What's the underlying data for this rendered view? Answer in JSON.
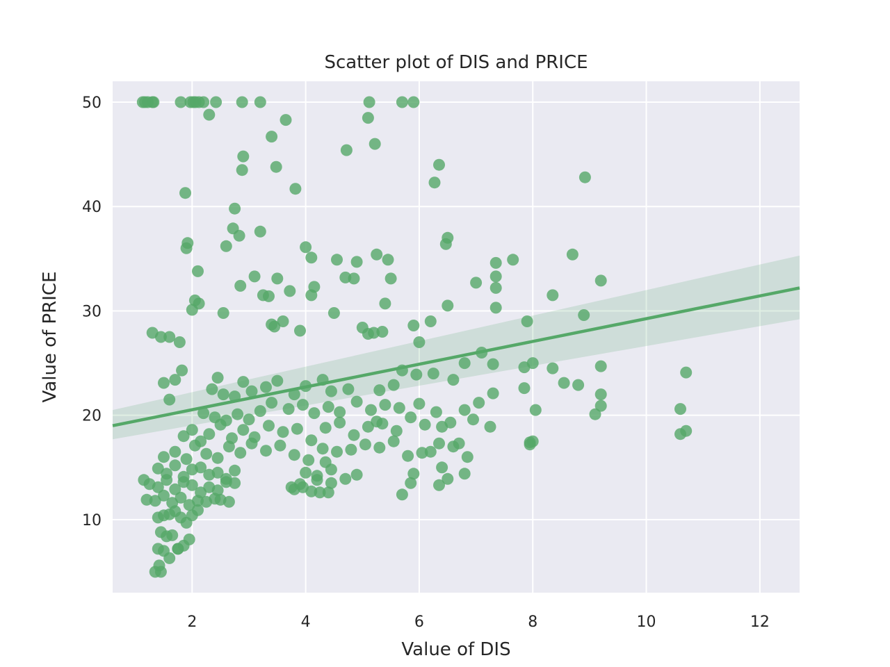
{
  "chart_data": {
    "type": "scatter",
    "title": "Scatter plot of DIS and PRICE",
    "xlabel": "Value of DIS",
    "ylabel": "Value of PRICE",
    "xlim": [
      0.6,
      12.7
    ],
    "ylim": [
      3,
      52
    ],
    "xticks": [
      2,
      4,
      6,
      8,
      10,
      12
    ],
    "yticks": [
      10,
      20,
      30,
      40,
      50
    ],
    "grid": true,
    "colors": {
      "background": "#eaeaf2",
      "grid": "#ffffff",
      "points": "#55a868",
      "ci_band": "#55a868"
    },
    "regression": {
      "x": [
        0.6,
        12.7
      ],
      "y": [
        19.0,
        32.2
      ],
      "ci_lower": [
        17.7,
        29.2
      ],
      "ci_upper": [
        20.5,
        35.3
      ]
    },
    "series": [
      {
        "x": [
          1.13,
          1.17,
          1.22,
          1.3,
          1.32,
          1.8,
          1.97,
          2.02,
          2.06,
          2.12,
          2.2,
          2.42,
          2.88,
          3.2,
          5.12,
          5.7,
          5.9,
          2.3,
          3.4,
          3.65,
          4.72,
          5.1,
          5.22,
          6.35,
          2.9,
          2.88,
          3.48,
          6.27,
          8.92,
          1.88,
          3.82,
          2.75,
          2.72,
          3.2,
          2.83,
          6.5,
          6.47,
          1.92,
          1.9,
          7.65,
          8.7,
          4.0,
          4.1,
          4.55,
          4.9,
          5.25,
          5.45,
          2.6,
          7.35,
          7.35,
          7.35,
          7.35,
          7.0,
          8.35,
          9.2,
          2.1,
          2.05,
          2.12,
          2.0,
          1.3,
          1.45,
          1.6,
          1.78,
          2.55,
          2.85,
          3.25,
          3.1,
          3.35,
          3.5,
          3.4,
          3.45,
          3.6,
          3.72,
          3.9,
          4.15,
          4.1,
          4.5,
          4.7,
          4.85,
          5.0,
          5.1,
          5.2,
          5.35,
          5.4,
          5.5,
          5.9,
          6.0,
          6.2,
          6.5,
          7.1,
          7.9,
          8.9,
          9.2,
          1.5,
          1.6,
          1.7,
          1.82,
          2.35,
          2.45,
          2.55,
          2.75,
          2.9,
          3.05,
          3.3,
          3.5,
          3.8,
          4.0,
          4.3,
          4.45,
          4.75,
          5.3,
          5.55,
          5.7,
          5.95,
          6.25,
          6.6,
          6.8,
          7.3,
          7.85,
          8.0,
          8.35,
          8.55,
          8.8,
          9.2,
          10.7,
          2.2,
          2.4,
          2.6,
          2.8,
          3.0,
          3.2,
          3.4,
          3.7,
          3.95,
          4.15,
          4.4,
          4.6,
          4.9,
          5.15,
          5.4,
          5.65,
          6.0,
          6.3,
          6.55,
          6.8,
          7.05,
          7.3,
          7.85,
          8.05,
          9.1,
          9.2,
          10.6,
          5.25,
          1.85,
          2.0,
          2.15,
          2.3,
          2.5,
          2.7,
          2.9,
          3.1,
          3.35,
          3.6,
          3.85,
          4.1,
          4.35,
          4.6,
          4.85,
          5.1,
          5.35,
          5.6,
          5.85,
          6.1,
          6.4,
          6.7,
          6.95,
          7.25,
          7.95,
          10.6,
          10.7,
          1.5,
          1.7,
          1.9,
          2.05,
          2.25,
          2.45,
          2.65,
          2.85,
          3.05,
          3.3,
          3.55,
          3.8,
          4.05,
          4.3,
          4.55,
          4.8,
          5.05,
          5.3,
          5.55,
          5.8,
          6.05,
          6.35,
          6.6,
          6.85,
          1.4,
          1.55,
          1.7,
          1.85,
          2.0,
          2.15,
          2.3,
          2.45,
          2.6,
          2.75,
          3.9,
          4.0,
          4.2,
          4.35,
          4.45,
          4.7,
          4.9,
          5.9,
          6.2,
          6.4,
          6.5,
          6.8,
          7.95,
          8.0,
          1.15,
          1.25,
          1.4,
          1.55,
          1.7,
          1.85,
          2.0,
          2.15,
          2.3,
          2.45,
          2.6,
          2.75,
          3.75,
          3.8,
          3.95,
          4.1,
          4.2,
          4.4,
          4.45,
          5.7,
          5.85,
          6.35,
          1.2,
          1.35,
          1.5,
          1.65,
          1.8,
          1.95,
          2.1,
          2.25,
          2.4,
          2.5,
          2.65,
          4.25,
          1.4,
          1.5,
          1.6,
          1.7,
          1.8,
          1.9,
          2.0,
          2.1,
          1.45,
          1.55,
          1.65,
          1.75,
          1.85,
          1.95,
          1.4,
          1.5,
          1.6,
          1.75,
          1.45,
          1.35,
          1.42
        ],
        "y": [
          50,
          50,
          50,
          50,
          50,
          50,
          50,
          50,
          50,
          50,
          50,
          50,
          50,
          50,
          50,
          50,
          50,
          48.8,
          46.7,
          48.3,
          45.4,
          48.5,
          46.0,
          44.0,
          44.8,
          43.5,
          43.8,
          42.3,
          42.8,
          41.3,
          41.7,
          39.8,
          37.9,
          37.6,
          37.2,
          37.0,
          36.4,
          36.5,
          36.0,
          34.9,
          35.4,
          36.1,
          35.1,
          34.9,
          34.7,
          35.4,
          34.9,
          36.2,
          34.6,
          33.3,
          32.2,
          30.3,
          32.7,
          31.5,
          32.9,
          33.8,
          31.0,
          30.7,
          30.1,
          27.9,
          27.5,
          27.5,
          27.0,
          29.8,
          32.4,
          31.5,
          33.3,
          31.4,
          33.1,
          28.7,
          28.5,
          29.0,
          31.9,
          28.1,
          32.3,
          31.5,
          29.8,
          33.2,
          33.1,
          28.4,
          27.8,
          27.9,
          28.0,
          30.7,
          33.1,
          28.6,
          27.0,
          29.0,
          30.5,
          26.0,
          29.0,
          29.6,
          22.0,
          23.1,
          21.5,
          23.4,
          24.3,
          22.5,
          23.6,
          22.0,
          21.8,
          23.2,
          22.3,
          22.7,
          23.3,
          22.0,
          22.8,
          23.4,
          22.3,
          22.5,
          22.4,
          22.9,
          24.3,
          23.9,
          24.0,
          23.4,
          25.0,
          24.9,
          24.6,
          25.0,
          24.5,
          23.1,
          22.9,
          24.7,
          24.1,
          20.2,
          19.8,
          19.5,
          20.1,
          19.6,
          20.4,
          21.2,
          20.6,
          21.0,
          20.2,
          20.8,
          20.3,
          21.3,
          20.5,
          21.0,
          20.7,
          21.1,
          20.3,
          19.3,
          20.5,
          21.2,
          22.1,
          22.6,
          20.5,
          20.1,
          20.9,
          20.6,
          19.4,
          18.0,
          18.6,
          17.5,
          18.2,
          19.1,
          17.8,
          18.6,
          17.9,
          19.0,
          18.4,
          18.7,
          17.6,
          18.8,
          19.3,
          18.1,
          18.9,
          19.2,
          18.5,
          19.8,
          19.1,
          18.9,
          17.3,
          19.6,
          18.9,
          17.4,
          18.2,
          18.5,
          16.0,
          16.5,
          15.8,
          17.1,
          16.3,
          15.9,
          17.0,
          16.4,
          17.3,
          16.6,
          17.1,
          16.2,
          15.7,
          16.8,
          16.5,
          16.7,
          17.2,
          16.9,
          17.5,
          16.1,
          16.4,
          17.3,
          17.0,
          16.0,
          14.9,
          14.4,
          15.2,
          14.1,
          14.8,
          15.0,
          14.3,
          14.5,
          13.9,
          14.7,
          13.4,
          14.5,
          14.2,
          15.5,
          14.8,
          13.9,
          14.3,
          14.4,
          16.5,
          15.0,
          13.9,
          14.4,
          17.2,
          17.5,
          13.8,
          13.4,
          13.1,
          13.8,
          12.9,
          13.6,
          13.3,
          12.6,
          13.1,
          12.8,
          13.6,
          13.5,
          13.1,
          12.9,
          13.1,
          12.7,
          13.8,
          12.6,
          13.5,
          12.4,
          13.5,
          13.3,
          11.9,
          11.8,
          12.3,
          11.6,
          12.1,
          11.4,
          11.8,
          11.7,
          12.0,
          11.9,
          11.7,
          12.6,
          10.2,
          10.4,
          10.5,
          10.8,
          10.2,
          9.7,
          10.4,
          10.9,
          8.8,
          8.4,
          8.5,
          7.2,
          7.5,
          8.1,
          7.2,
          7.0,
          6.3,
          7.2,
          5.0,
          5.0,
          5.6
        ]
      }
    ]
  }
}
